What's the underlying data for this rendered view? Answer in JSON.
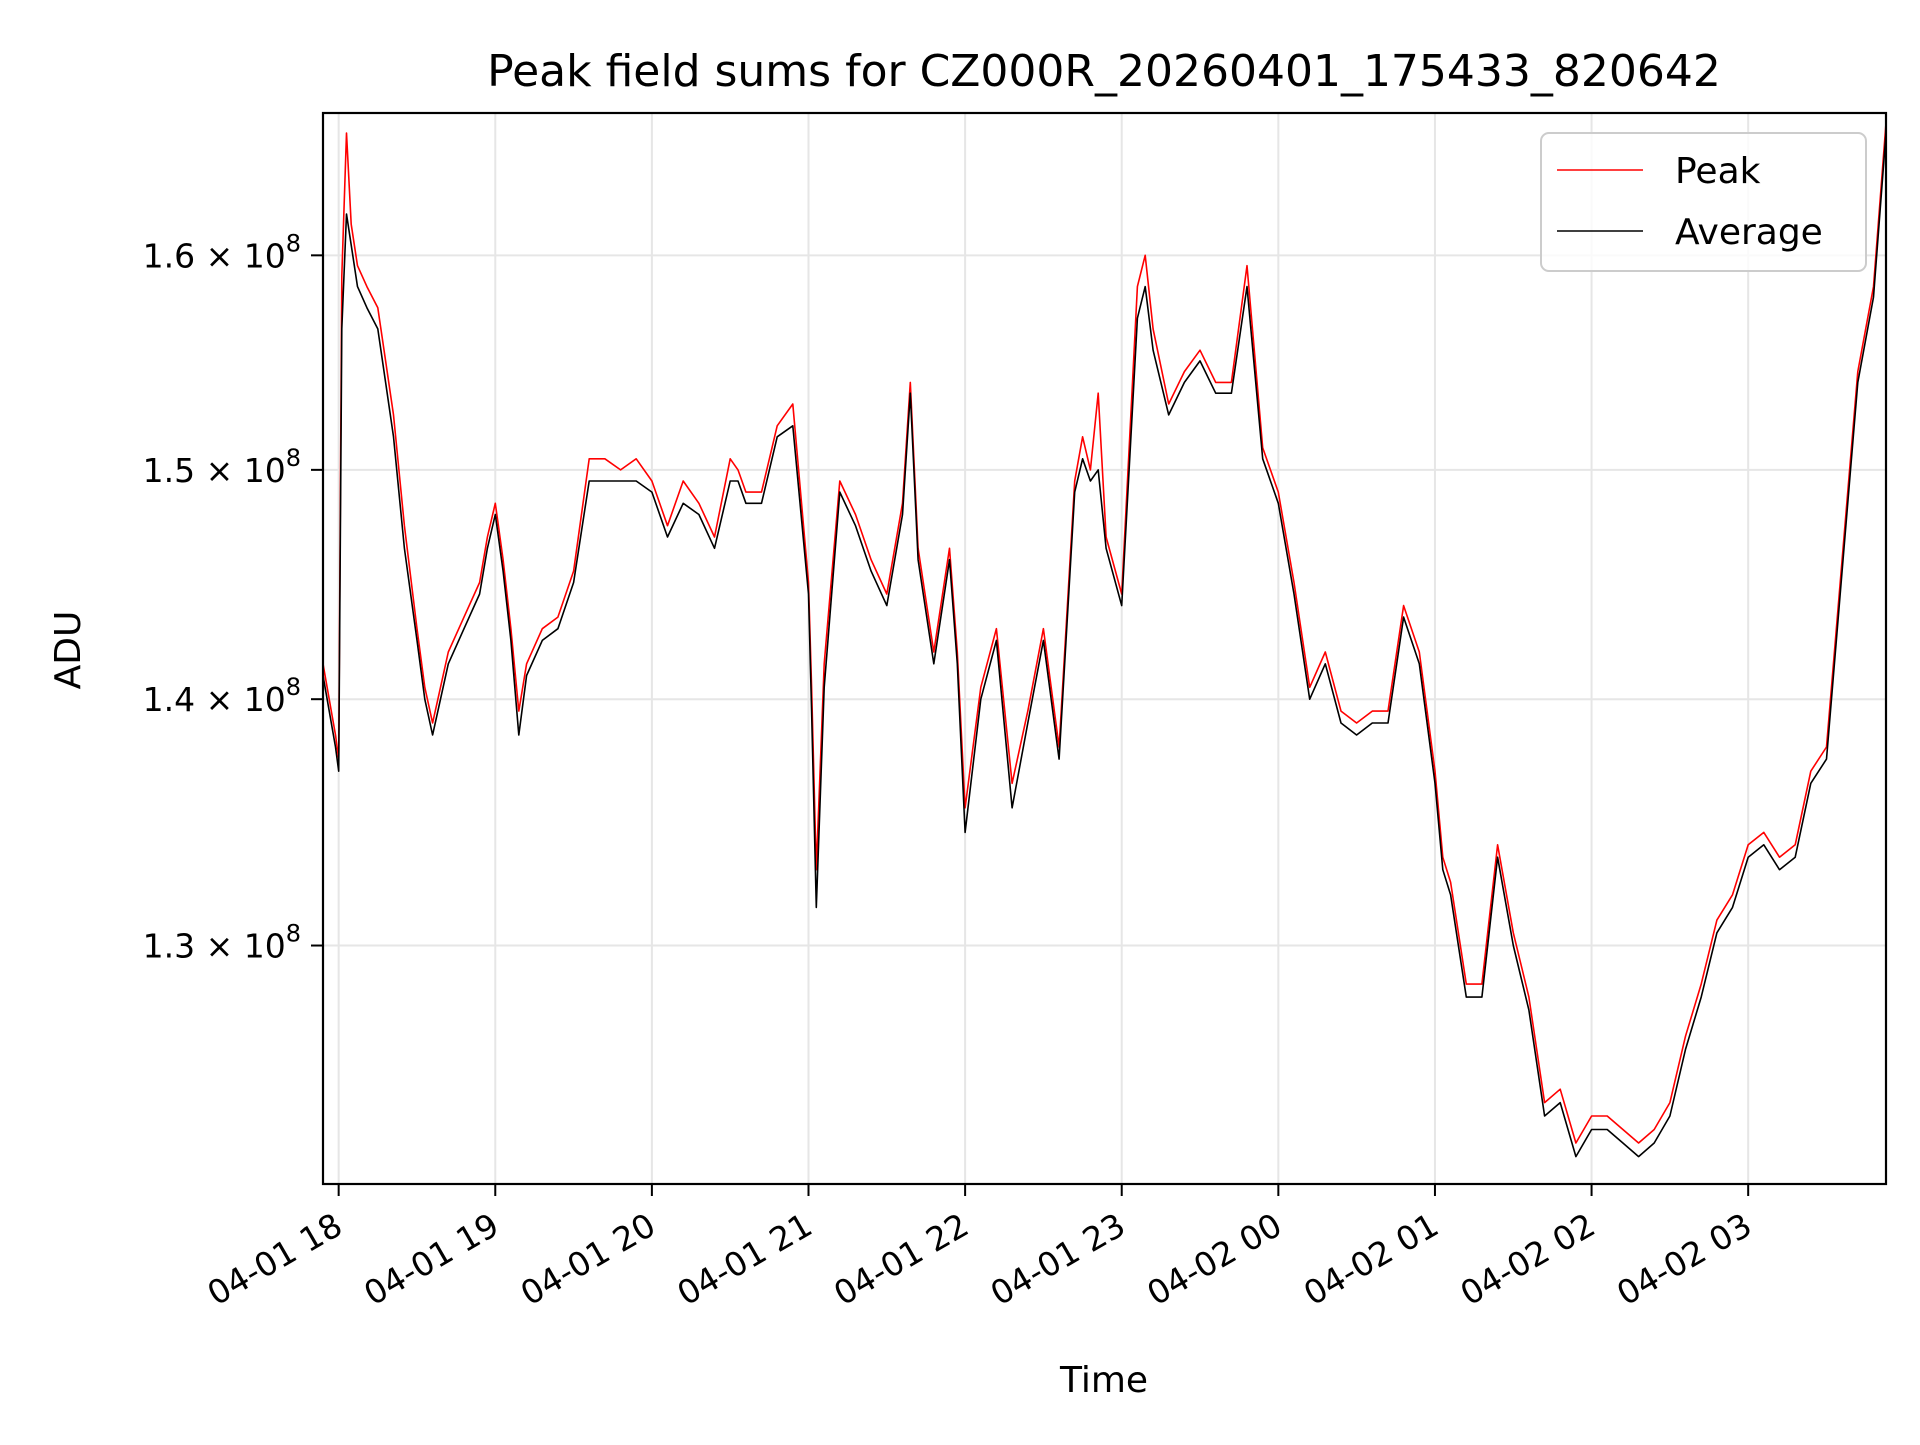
{
  "chart_data": {
    "type": "line",
    "title": "Peak field sums for CZ000R_20260401_175433_820642",
    "xlabel": "Time",
    "ylabel": "ADU",
    "yscale": "log",
    "grid": true,
    "legend_position": "top-right",
    "xlim": [
      "04-01 17:54",
      "04-02 03:53"
    ],
    "ylim": [
      121000000,
      167000000
    ],
    "x_ticks": [
      "04-01 18",
      "04-01 19",
      "04-01 20",
      "04-01 21",
      "04-01 22",
      "04-01 23",
      "04-02 00",
      "04-02 01",
      "04-02 02",
      "04-02 03"
    ],
    "y_ticks": [
      {
        "value": 130000000,
        "mantissa": "1.3",
        "base": "10",
        "exp": "8"
      },
      {
        "value": 140000000,
        "mantissa": "1.4",
        "base": "10",
        "exp": "8"
      },
      {
        "value": 150000000,
        "mantissa": "1.5",
        "base": "10",
        "exp": "8"
      },
      {
        "value": 160000000,
        "mantissa": "1.6",
        "base": "10",
        "exp": "8"
      }
    ],
    "x_unit": "hours after 04-01 18:00",
    "series": [
      {
        "name": "Peak",
        "color": "#ff0000",
        "x": [
          -0.1,
          -0.02,
          0.0,
          0.02,
          0.05,
          0.08,
          0.12,
          0.18,
          0.25,
          0.3,
          0.35,
          0.42,
          0.5,
          0.55,
          0.6,
          0.65,
          0.7,
          0.8,
          0.9,
          0.95,
          1.0,
          1.05,
          1.1,
          1.15,
          1.2,
          1.3,
          1.4,
          1.5,
          1.6,
          1.7,
          1.8,
          1.9,
          2.0,
          2.1,
          2.2,
          2.3,
          2.4,
          2.5,
          2.55,
          2.6,
          2.7,
          2.8,
          2.9,
          3.0,
          3.02,
          3.05,
          3.1,
          3.2,
          3.3,
          3.4,
          3.5,
          3.6,
          3.65,
          3.7,
          3.8,
          3.9,
          3.95,
          4.0,
          4.1,
          4.2,
          4.3,
          4.4,
          4.5,
          4.6,
          4.7,
          4.75,
          4.8,
          4.85,
          4.9,
          5.0,
          5.1,
          5.15,
          5.2,
          5.3,
          5.4,
          5.5,
          5.6,
          5.7,
          5.8,
          5.9,
          6.0,
          6.1,
          6.2,
          6.3,
          6.4,
          6.5,
          6.6,
          6.7,
          6.8,
          6.9,
          7.0,
          7.05,
          7.1,
          7.2,
          7.3,
          7.4,
          7.5,
          7.6,
          7.7,
          7.8,
          7.9,
          8.0,
          8.1,
          8.2,
          8.3,
          8.4,
          8.5,
          8.6,
          8.7,
          8.8,
          8.9,
          9.0,
          9.1,
          9.2,
          9.3,
          9.4,
          9.5,
          9.6,
          9.7,
          9.8,
          9.88
        ],
        "values": [
          141500000,
          138500000,
          137500000,
          159000000,
          166000000,
          161500000,
          159500000,
          158500000,
          157500000,
          155000000,
          152500000,
          147500000,
          143000000,
          140500000,
          139000000,
          140500000,
          142000000,
          143500000,
          145000000,
          147000000,
          148500000,
          146000000,
          143000000,
          139500000,
          141500000,
          143000000,
          143500000,
          145500000,
          150500000,
          150500000,
          150000000,
          150500000,
          149500000,
          147500000,
          149500000,
          148500000,
          147000000,
          150500000,
          150000000,
          149000000,
          149000000,
          152000000,
          153000000,
          145000000,
          140500000,
          133000000,
          141500000,
          149500000,
          148000000,
          146000000,
          144500000,
          148500000,
          154000000,
          146500000,
          142000000,
          146500000,
          142000000,
          135500000,
          140500000,
          143000000,
          136500000,
          139500000,
          143000000,
          138000000,
          149500000,
          151500000,
          150000000,
          153500000,
          147000000,
          144500000,
          158500000,
          160000000,
          156500000,
          153000000,
          154500000,
          155500000,
          154000000,
          154000000,
          159500000,
          151000000,
          149000000,
          145000000,
          140500000,
          142000000,
          139500000,
          139000000,
          139500000,
          139500000,
          144000000,
          142000000,
          137000000,
          133500000,
          132500000,
          128500000,
          128500000,
          134000000,
          130500000,
          128000000,
          124000000,
          124500000,
          122500000,
          123500000,
          123500000,
          123000000,
          122500000,
          123000000,
          124000000,
          126500000,
          128500000,
          131000000,
          132000000,
          134000000,
          134500000,
          133500000,
          134000000,
          137000000,
          138000000,
          146000000,
          154500000,
          158500000,
          166500000
        ]
      },
      {
        "name": "Average",
        "color": "#000000",
        "x": [
          -0.1,
          -0.02,
          0.0,
          0.02,
          0.05,
          0.08,
          0.12,
          0.18,
          0.25,
          0.3,
          0.35,
          0.42,
          0.5,
          0.55,
          0.6,
          0.65,
          0.7,
          0.8,
          0.9,
          0.95,
          1.0,
          1.05,
          1.1,
          1.15,
          1.2,
          1.3,
          1.4,
          1.5,
          1.6,
          1.7,
          1.8,
          1.9,
          2.0,
          2.1,
          2.2,
          2.3,
          2.4,
          2.5,
          2.55,
          2.6,
          2.7,
          2.8,
          2.9,
          3.0,
          3.02,
          3.05,
          3.1,
          3.2,
          3.3,
          3.4,
          3.5,
          3.6,
          3.65,
          3.7,
          3.8,
          3.9,
          3.95,
          4.0,
          4.1,
          4.2,
          4.3,
          4.4,
          4.5,
          4.6,
          4.7,
          4.75,
          4.8,
          4.85,
          4.9,
          5.0,
          5.1,
          5.15,
          5.2,
          5.3,
          5.4,
          5.5,
          5.6,
          5.7,
          5.8,
          5.9,
          6.0,
          6.1,
          6.2,
          6.3,
          6.4,
          6.5,
          6.6,
          6.7,
          6.8,
          6.9,
          7.0,
          7.05,
          7.1,
          7.2,
          7.3,
          7.4,
          7.5,
          7.6,
          7.7,
          7.8,
          7.9,
          8.0,
          8.1,
          8.2,
          8.3,
          8.4,
          8.5,
          8.6,
          8.7,
          8.8,
          8.9,
          9.0,
          9.1,
          9.2,
          9.3,
          9.4,
          9.5,
          9.6,
          9.7,
          9.8,
          9.88
        ],
        "values": [
          141000000,
          138000000,
          137000000,
          156500000,
          162000000,
          160500000,
          158500000,
          157500000,
          156500000,
          154000000,
          151500000,
          146500000,
          142500000,
          140000000,
          138500000,
          140000000,
          141500000,
          143000000,
          144500000,
          146500000,
          148000000,
          145500000,
          142500000,
          138500000,
          141000000,
          142500000,
          143000000,
          145000000,
          149500000,
          149500000,
          149500000,
          149500000,
          149000000,
          147000000,
          148500000,
          148000000,
          146500000,
          149500000,
          149500000,
          148500000,
          148500000,
          151500000,
          152000000,
          144500000,
          139500000,
          131500000,
          140500000,
          149000000,
          147500000,
          145500000,
          144000000,
          148000000,
          153500000,
          146000000,
          141500000,
          146000000,
          141500000,
          134500000,
          140000000,
          142500000,
          135500000,
          139000000,
          142500000,
          137500000,
          149000000,
          150500000,
          149500000,
          150000000,
          146500000,
          144000000,
          157000000,
          158500000,
          155500000,
          152500000,
          154000000,
          155000000,
          153500000,
          153500000,
          158500000,
          150500000,
          148500000,
          144500000,
          140000000,
          141500000,
          139000000,
          138500000,
          139000000,
          139000000,
          143500000,
          141500000,
          136500000,
          133000000,
          132000000,
          128000000,
          128000000,
          133500000,
          130000000,
          127500000,
          123500000,
          124000000,
          122000000,
          123000000,
          123000000,
          122500000,
          122000000,
          122500000,
          123500000,
          126000000,
          128000000,
          130500000,
          131500000,
          133500000,
          134000000,
          133000000,
          133500000,
          136500000,
          137500000,
          145500000,
          154000000,
          158000000,
          166000000
        ]
      }
    ]
  }
}
